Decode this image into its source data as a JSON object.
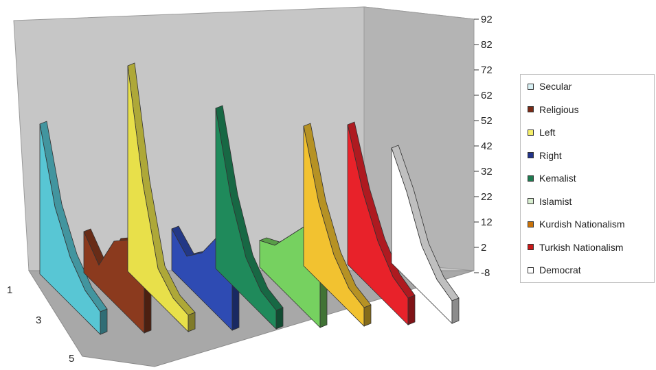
{
  "chart_data": {
    "type": "area",
    "view": "3d-ribbon",
    "y_ticks": [
      "92",
      "82",
      "72",
      "62",
      "52",
      "42",
      "32",
      "22",
      "12",
      "2",
      "-8"
    ],
    "z_ticks": [
      "1",
      "3",
      "5"
    ],
    "ylim": [
      -8,
      92
    ],
    "x": [
      1,
      2,
      3,
      4,
      5
    ],
    "grid": false,
    "legend_position": "right",
    "series": [
      {
        "name": "Secular",
        "color": "#58c6d4",
        "values": [
          65,
          32,
          15,
          6,
          3
        ]
      },
      {
        "name": "Religious",
        "color": "#8b3a1e",
        "values": [
          12,
          3,
          22,
          30,
          15
        ]
      },
      {
        "name": "Left",
        "color": "#e8e04a",
        "values": [
          92,
          42,
          8,
          1,
          0
        ]
      },
      {
        "name": "Right",
        "color": "#2e4bb3",
        "values": [
          12,
          6,
          15,
          30,
          20
        ]
      },
      {
        "name": "Kemalist",
        "color": "#1f8a5b",
        "values": [
          70,
          34,
          12,
          3,
          1
        ]
      },
      {
        "name": "Islamist",
        "color": "#76d160",
        "values": [
          5,
          10,
          22,
          34,
          28
        ]
      },
      {
        "name": "Kurdish Nationalist",
        "color": "#f2c230",
        "values": [
          60,
          30,
          12,
          3,
          1
        ]
      },
      {
        "name": "Turkish Nationalist",
        "color": "#e8222a",
        "values": [
          60,
          35,
          18,
          8,
          5
        ]
      },
      {
        "name": "Democrat",
        "color": "#ffffff",
        "values": [
          48,
          34,
          15,
          6,
          3
        ]
      }
    ]
  },
  "legend": {
    "items": [
      {
        "label": "Secular",
        "swatch": "#d8f0f4"
      },
      {
        "label": "Religious",
        "swatch": "#7a2a16"
      },
      {
        "label": "Left",
        "swatch": "#f5ef6a"
      },
      {
        "label": "Right",
        "swatch": "#22348a"
      },
      {
        "label": "Kemalist",
        "swatch": "#1f7a50"
      },
      {
        "label": "Islamist",
        "swatch": "#d8eed0"
      },
      {
        "label": "Kurdish Nationalism",
        "swatch": "#c9720a"
      },
      {
        "label": "Turkish Nationalism",
        "swatch": "#c81818"
      },
      {
        "label": "Democrat",
        "swatch": "#ffffff"
      }
    ]
  }
}
